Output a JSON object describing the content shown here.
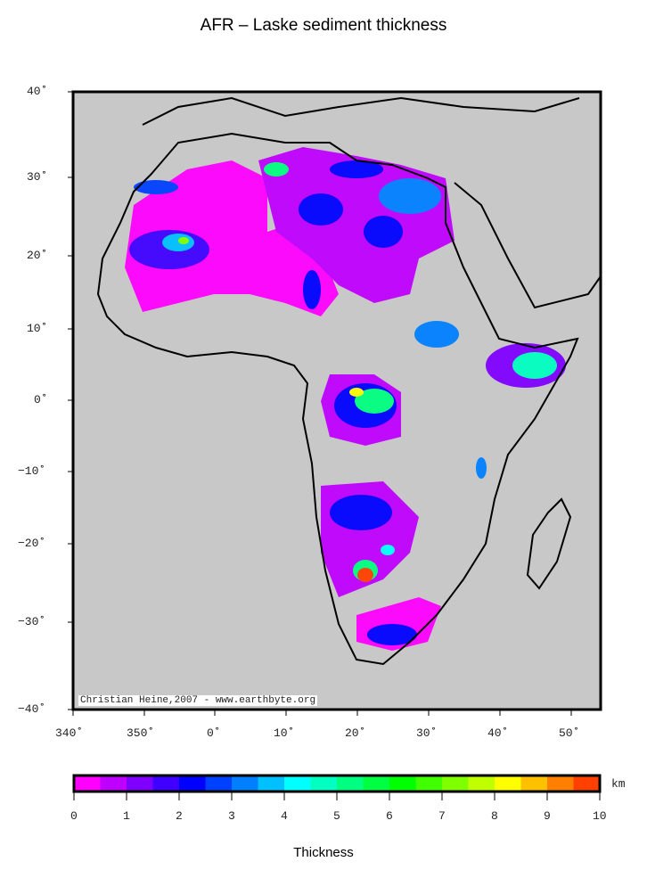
{
  "title": "AFR – Laske sediment thickness",
  "credit": "Christian Heine,2007 - www.earthbyte.org",
  "lat_ticks": [
    "40˚",
    "30˚",
    "20˚",
    "10˚",
    "0˚",
    "−10˚",
    "−20˚",
    "−30˚",
    "−40˚"
  ],
  "lon_ticks": [
    "340˚",
    "350˚",
    "0˚",
    "10˚",
    "20˚",
    "30˚",
    "40˚",
    "50˚"
  ],
  "colorbar": {
    "title": "Thickness",
    "unit": "km",
    "ticks": [
      "0",
      "1",
      "2",
      "3",
      "4",
      "5",
      "6",
      "7",
      "8",
      "9",
      "10"
    ],
    "range": [
      0,
      10
    ],
    "colors": [
      "#ff00ff",
      "#c000ff",
      "#8000ff",
      "#4000ff",
      "#0000ff",
      "#0040ff",
      "#0080ff",
      "#00c0ff",
      "#00ffff",
      "#00ffc0",
      "#00ff80",
      "#00ff40",
      "#00ff00",
      "#40ff00",
      "#80ff00",
      "#c0ff00",
      "#ffff00",
      "#ffc000",
      "#ff8000",
      "#ff4000"
    ]
  },
  "map": {
    "land_color": "#c8c8c8",
    "lon_range": [
      340,
      54
    ],
    "lat_range": [
      -40,
      40
    ],
    "projection": "mercator"
  }
}
